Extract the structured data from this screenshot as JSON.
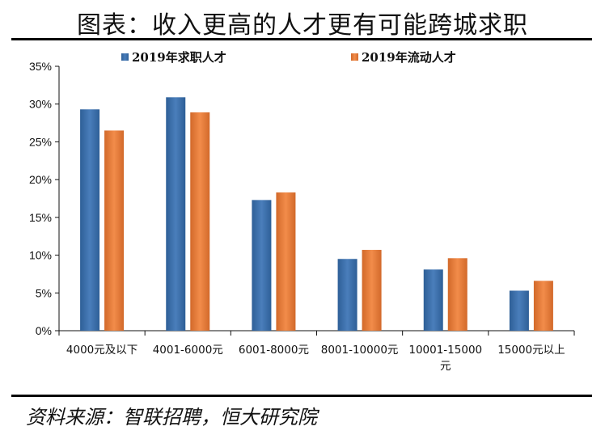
{
  "title": "图表：收入更高的人才更有可能跨城求职",
  "source": "资料来源：智联招聘，恒大研究院",
  "colors": {
    "series1": "#4a7ebb",
    "series1_dark": "#2e5f97",
    "series2": "#f28c4a",
    "series2_dark": "#d2692a"
  },
  "chart_data": {
    "type": "bar",
    "title": "",
    "xlabel": "",
    "ylabel": "",
    "ylim": [
      0,
      35
    ],
    "y_unit": "%",
    "y_ticks": [
      "0%",
      "5%",
      "10%",
      "15%",
      "20%",
      "25%",
      "30%",
      "35%"
    ],
    "y_tick_values": [
      0,
      5,
      10,
      15,
      20,
      25,
      30,
      35
    ],
    "categories": [
      "4000元及以下",
      "4001-6000元",
      "6001-8000元",
      "8001-10000元",
      "10001-15000元",
      "15000元以上"
    ],
    "category_lines": [
      [
        "4000元及以下"
      ],
      [
        "4001-6000元"
      ],
      [
        "6001-8000元"
      ],
      [
        "8001-10000元"
      ],
      [
        "10001-15000",
        "元"
      ],
      [
        "15000元以上"
      ]
    ],
    "series": [
      {
        "name": "2019年求职人才",
        "values": [
          29.3,
          30.9,
          17.3,
          9.5,
          8.1,
          5.3
        ]
      },
      {
        "name": "2019年流动人才",
        "values": [
          26.5,
          28.9,
          18.3,
          10.7,
          9.6,
          6.6
        ]
      }
    ],
    "legend_position": "top",
    "grid": false
  }
}
